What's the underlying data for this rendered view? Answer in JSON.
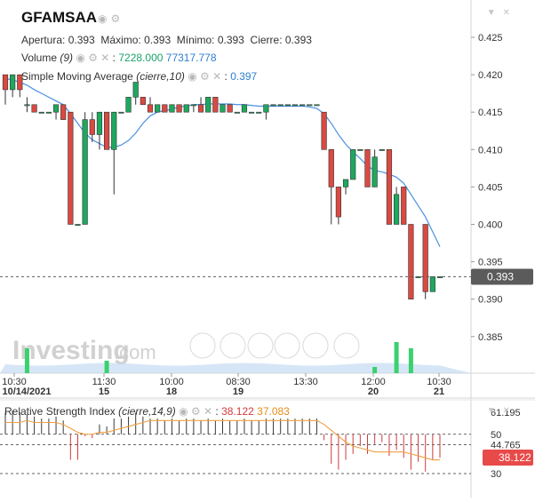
{
  "header": {
    "symbol": "GFAMSAA",
    "ohlc": [
      {
        "label": "Apertura:",
        "value": "0.393"
      },
      {
        "label": "Máximo:",
        "value": "0.393"
      },
      {
        "label": "Mínimo:",
        "value": "0.393"
      },
      {
        "label": "Cierre:",
        "value": "0.393"
      }
    ],
    "volume_label": "Volume",
    "volume_param": "(9)",
    "volume_value_1": "7228.000",
    "volume_value_2": "77317.778",
    "sma_label": "Simple Moving Average",
    "sma_param": "(cierre,10)",
    "sma_value": "0.397"
  },
  "watermark": {
    "brand": "Investing",
    "suffix": ".com"
  },
  "colors": {
    "up": "#26a69a",
    "up_fill": "#1ea85f",
    "down": "#ef5350",
    "down_fill": "#d94a42",
    "sma": "#4a90e2",
    "rsi_signal": "#f0a040",
    "volume_area": "#bcd6f0",
    "price_tag": "#5b5b5b",
    "rsi_tag": "#e84a4a"
  },
  "chart_data": [
    {
      "type": "candlestick",
      "title": "GFAMSAA",
      "xlabel": "",
      "ylabel": "",
      "ylim": [
        0.381,
        0.427
      ],
      "y_ticks": [
        "0.425",
        "0.420",
        "0.415",
        "0.410",
        "0.405",
        "0.400",
        "0.395",
        "0.390",
        "0.385"
      ],
      "x_ticks": [
        {
          "time": "10:30",
          "date": "10/14/2021"
        },
        {
          "time": "11:30",
          "date": "15"
        },
        {
          "time": "10:00",
          "date": "18"
        },
        {
          "time": "08:30",
          "date": "19"
        },
        {
          "time": "13:30",
          "date": ""
        },
        {
          "time": "12:00",
          "date": "20"
        },
        {
          "time": "10:30",
          "date": "21"
        }
      ],
      "last_price": "0.393",
      "candles": [
        {
          "o": 0.42,
          "h": 0.42,
          "l": 0.416,
          "c": 0.418
        },
        {
          "o": 0.418,
          "h": 0.42,
          "l": 0.417,
          "c": 0.42
        },
        {
          "o": 0.42,
          "h": 0.42,
          "l": 0.417,
          "c": 0.418
        },
        {
          "o": 0.416,
          "h": 0.417,
          "l": 0.415,
          "c": 0.416
        },
        {
          "o": 0.416,
          "h": 0.416,
          "l": 0.415,
          "c": 0.415
        },
        {
          "o": 0.415,
          "h": 0.415,
          "l": 0.415,
          "c": 0.415
        },
        {
          "o": 0.415,
          "h": 0.415,
          "l": 0.415,
          "c": 0.415
        },
        {
          "o": 0.415,
          "h": 0.416,
          "l": 0.414,
          "c": 0.416
        },
        {
          "o": 0.416,
          "h": 0.416,
          "l": 0.414,
          "c": 0.414
        },
        {
          "o": 0.415,
          "h": 0.415,
          "l": 0.4,
          "c": 0.4
        },
        {
          "o": 0.4,
          "h": 0.4,
          "l": 0.4,
          "c": 0.4
        },
        {
          "o": 0.4,
          "h": 0.415,
          "l": 0.4,
          "c": 0.414
        },
        {
          "o": 0.414,
          "h": 0.415,
          "l": 0.411,
          "c": 0.412
        },
        {
          "o": 0.412,
          "h": 0.415,
          "l": 0.41,
          "c": 0.415
        },
        {
          "o": 0.415,
          "h": 0.415,
          "l": 0.41,
          "c": 0.41
        },
        {
          "o": 0.41,
          "h": 0.415,
          "l": 0.404,
          "c": 0.415
        },
        {
          "o": 0.415,
          "h": 0.415,
          "l": 0.415,
          "c": 0.415
        },
        {
          "o": 0.415,
          "h": 0.417,
          "l": 0.415,
          "c": 0.417
        },
        {
          "o": 0.417,
          "h": 0.419,
          "l": 0.416,
          "c": 0.419
        },
        {
          "o": 0.417,
          "h": 0.417,
          "l": 0.416,
          "c": 0.416
        },
        {
          "o": 0.416,
          "h": 0.417,
          "l": 0.415,
          "c": 0.415
        },
        {
          "o": 0.415,
          "h": 0.416,
          "l": 0.415,
          "c": 0.416
        },
        {
          "o": 0.416,
          "h": 0.416,
          "l": 0.415,
          "c": 0.415
        },
        {
          "o": 0.415,
          "h": 0.416,
          "l": 0.415,
          "c": 0.416
        },
        {
          "o": 0.416,
          "h": 0.416,
          "l": 0.415,
          "c": 0.415
        },
        {
          "o": 0.415,
          "h": 0.416,
          "l": 0.415,
          "c": 0.416
        },
        {
          "o": 0.416,
          "h": 0.416,
          "l": 0.415,
          "c": 0.416
        },
        {
          "o": 0.416,
          "h": 0.417,
          "l": 0.415,
          "c": 0.415
        },
        {
          "o": 0.415,
          "h": 0.417,
          "l": 0.415,
          "c": 0.417
        },
        {
          "o": 0.417,
          "h": 0.417,
          "l": 0.415,
          "c": 0.415
        },
        {
          "o": 0.415,
          "h": 0.416,
          "l": 0.415,
          "c": 0.416
        },
        {
          "o": 0.416,
          "h": 0.416,
          "l": 0.415,
          "c": 0.415
        },
        {
          "o": 0.415,
          "h": 0.415,
          "l": 0.415,
          "c": 0.415
        },
        {
          "o": 0.415,
          "h": 0.416,
          "l": 0.415,
          "c": 0.416
        },
        {
          "o": 0.415,
          "h": 0.415,
          "l": 0.415,
          "c": 0.415
        },
        {
          "o": 0.415,
          "h": 0.415,
          "l": 0.415,
          "c": 0.415
        },
        {
          "o": 0.415,
          "h": 0.416,
          "l": 0.414,
          "c": 0.416
        },
        {
          "o": 0.416,
          "h": 0.416,
          "l": 0.416,
          "c": 0.416
        },
        {
          "o": 0.416,
          "h": 0.416,
          "l": 0.416,
          "c": 0.416
        },
        {
          "o": 0.416,
          "h": 0.416,
          "l": 0.416,
          "c": 0.416
        },
        {
          "o": 0.416,
          "h": 0.416,
          "l": 0.416,
          "c": 0.416
        },
        {
          "o": 0.416,
          "h": 0.416,
          "l": 0.416,
          "c": 0.416
        },
        {
          "o": 0.416,
          "h": 0.416,
          "l": 0.416,
          "c": 0.416
        },
        {
          "o": 0.416,
          "h": 0.416,
          "l": 0.416,
          "c": 0.416
        },
        {
          "o": 0.415,
          "h": 0.415,
          "l": 0.41,
          "c": 0.41
        },
        {
          "o": 0.41,
          "h": 0.41,
          "l": 0.4,
          "c": 0.405
        },
        {
          "o": 0.405,
          "h": 0.405,
          "l": 0.4,
          "c": 0.401
        },
        {
          "o": 0.405,
          "h": 0.406,
          "l": 0.404,
          "c": 0.406
        },
        {
          "o": 0.406,
          "h": 0.41,
          "l": 0.406,
          "c": 0.41
        },
        {
          "o": 0.41,
          "h": 0.41,
          "l": 0.41,
          "c": 0.41
        },
        {
          "o": 0.41,
          "h": 0.41,
          "l": 0.405,
          "c": 0.405
        },
        {
          "o": 0.405,
          "h": 0.41,
          "l": 0.405,
          "c": 0.409
        },
        {
          "o": 0.41,
          "h": 0.41,
          "l": 0.41,
          "c": 0.41
        },
        {
          "o": 0.41,
          "h": 0.41,
          "l": 0.4,
          "c": 0.4
        },
        {
          "o": 0.4,
          "h": 0.405,
          "l": 0.4,
          "c": 0.404
        },
        {
          "o": 0.405,
          "h": 0.405,
          "l": 0.4,
          "c": 0.4
        },
        {
          "o": 0.4,
          "h": 0.4,
          "l": 0.39,
          "c": 0.39
        },
        {
          "o": 0.393,
          "h": 0.393,
          "l": 0.393,
          "c": 0.393
        },
        {
          "o": 0.4,
          "h": 0.4,
          "l": 0.39,
          "c": 0.391
        },
        {
          "o": 0.391,
          "h": 0.393,
          "l": 0.391,
          "c": 0.393
        },
        {
          "o": 0.393,
          "h": 0.393,
          "l": 0.393,
          "c": 0.393
        }
      ],
      "sma": [
        0.4195,
        0.4193,
        0.419,
        0.4186,
        0.418,
        0.4175,
        0.417,
        0.4165,
        0.416,
        0.4148,
        0.4135,
        0.4122,
        0.4113,
        0.4108,
        0.4103,
        0.4103,
        0.4106,
        0.4112,
        0.4122,
        0.4135,
        0.4145,
        0.415,
        0.4152,
        0.4154,
        0.4157,
        0.4158,
        0.416,
        0.416,
        0.4161,
        0.4161,
        0.4161,
        0.4161,
        0.416,
        0.416,
        0.4159,
        0.4158,
        0.4158,
        0.4158,
        0.4158,
        0.4158,
        0.4158,
        0.4158,
        0.4157,
        0.4155,
        0.4148,
        0.4135,
        0.412,
        0.4107,
        0.4097,
        0.4088,
        0.4078,
        0.4072,
        0.407,
        0.4067,
        0.4063,
        0.4055,
        0.404,
        0.4025,
        0.401,
        0.399,
        0.397
      ],
      "volume": [
        0,
        0,
        0,
        4,
        0,
        0,
        0,
        0,
        0,
        0,
        0,
        0,
        0,
        0,
        2,
        0,
        0,
        0,
        0,
        0,
        0,
        0,
        0,
        0,
        0,
        0,
        0,
        0,
        0,
        0,
        0,
        0,
        0,
        0,
        0,
        0,
        0,
        0,
        0,
        0,
        0,
        0,
        0,
        0,
        0,
        0,
        0,
        0,
        0,
        0,
        0,
        1,
        0,
        0,
        5,
        0,
        4,
        0,
        0,
        0,
        0
      ]
    },
    {
      "type": "line",
      "title": "Relative Strength Index",
      "params": "(cierre,14,9)",
      "rsi_value": "38.122",
      "signal_value": "37.083",
      "ylim": [
        22,
        66
      ],
      "y_ticks": [
        "61.195",
        "50",
        "44.765",
        "30"
      ],
      "rsi_tag": "38.122",
      "rsi": [
        61,
        62,
        61,
        60,
        59,
        58,
        58,
        59,
        57,
        37,
        37,
        49,
        48,
        55,
        54,
        58,
        58,
        59,
        61,
        59,
        58,
        58,
        57,
        58,
        57,
        58,
        58,
        57,
        58,
        57,
        58,
        57,
        57,
        58,
        57,
        57,
        58,
        58,
        58,
        58,
        58,
        58,
        58,
        58,
        47,
        35,
        32,
        37,
        40,
        44,
        40,
        45,
        46,
        39,
        42,
        38,
        32,
        36,
        31,
        37,
        38
      ],
      "signal": [
        56,
        56,
        56,
        57,
        56,
        56,
        56,
        56,
        55,
        53,
        51,
        50,
        50,
        51,
        51,
        52,
        53,
        54,
        55,
        56,
        57,
        57,
        57,
        57,
        57,
        57,
        57,
        57,
        57,
        57,
        57,
        57,
        57,
        57,
        57,
        57,
        57,
        57,
        57,
        57,
        57,
        57,
        57,
        57,
        55,
        52,
        49,
        46,
        44,
        43,
        42,
        41,
        41,
        41,
        41,
        41,
        40,
        39,
        38,
        37,
        37
      ]
    }
  ]
}
